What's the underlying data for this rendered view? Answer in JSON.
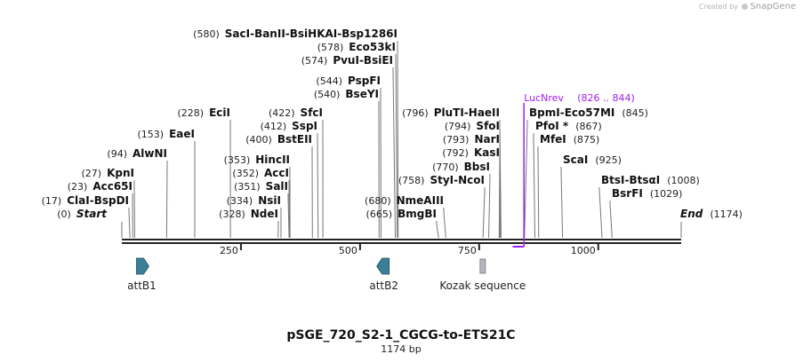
{
  "credit": {
    "prefix": "Created by",
    "brand": "SnapGene"
  },
  "map": {
    "title": "pSGE_720_S2-1_CGCG-to-ETS21C",
    "length_label": "1174 bp",
    "length": 1174,
    "ticks": [
      {
        "pos": 250,
        "label": "250"
      },
      {
        "pos": 500,
        "label": "500"
      },
      {
        "pos": 750,
        "label": "750"
      },
      {
        "pos": 1000,
        "label": "1000"
      }
    ]
  },
  "sites": [
    {
      "num": "(0)",
      "parts": [
        "Start"
      ],
      "italic": true,
      "pos": 0
    },
    {
      "num": "(17)",
      "parts": [
        "ClaI",
        "BspDI"
      ],
      "pos": 17
    },
    {
      "num": "(23)",
      "parts": [
        "Acc65I"
      ],
      "pos": 23
    },
    {
      "num": "(27)",
      "parts": [
        "KpnI"
      ],
      "pos": 27
    },
    {
      "num": "(94)",
      "parts": [
        "AlwNI"
      ],
      "pos": 94
    },
    {
      "num": "(153)",
      "parts": [
        "EaeI"
      ],
      "pos": 153
    },
    {
      "num": "(228)",
      "parts": [
        "EciI"
      ],
      "pos": 228
    },
    {
      "num": "(328)",
      "parts": [
        "NdeI"
      ],
      "pos": 328
    },
    {
      "num": "(334)",
      "parts": [
        "NsiI"
      ],
      "pos": 334
    },
    {
      "num": "(351)",
      "parts": [
        "SalI"
      ],
      "pos": 351
    },
    {
      "num": "(352)",
      "parts": [
        "AccI"
      ],
      "pos": 352
    },
    {
      "num": "(353)",
      "parts": [
        "HincII"
      ],
      "pos": 353
    },
    {
      "num": "(400)",
      "parts": [
        "BstEII"
      ],
      "pos": 400
    },
    {
      "num": "(412)",
      "parts": [
        "SspI"
      ],
      "pos": 412
    },
    {
      "num": "(422)",
      "parts": [
        "SfcI"
      ],
      "pos": 422
    },
    {
      "num": "(540)",
      "parts": [
        "BseYI"
      ],
      "pos": 540
    },
    {
      "num": "(544)",
      "parts": [
        "PspFI"
      ],
      "pos": 544
    },
    {
      "num": "(574)",
      "parts": [
        "PvuI",
        "BsiEI"
      ],
      "pos": 574
    },
    {
      "num": "(578)",
      "parts": [
        "Eco53kI"
      ],
      "pos": 578
    },
    {
      "num": "(580)",
      "parts": [
        "SacI",
        "BanII",
        "BsiHKAI",
        "Bsp1286I"
      ],
      "pos": 580
    },
    {
      "num": "(665)",
      "parts": [
        "BmgBI"
      ],
      "pos": 665
    },
    {
      "num": "(680)",
      "parts": [
        "NmeAIII"
      ],
      "pos": 680
    },
    {
      "num": "(758)",
      "parts": [
        "StyI",
        "NcoI"
      ],
      "pos": 758
    },
    {
      "num": "(770)",
      "parts": [
        "BbsI"
      ],
      "pos": 770
    },
    {
      "num": "(792)",
      "parts": [
        "KasI"
      ],
      "pos": 792
    },
    {
      "num": "(793)",
      "parts": [
        "NarI"
      ],
      "pos": 793
    },
    {
      "num": "(794)",
      "parts": [
        "SfoI"
      ],
      "pos": 794
    },
    {
      "num": "(796)",
      "parts": [
        "PluTI",
        "HaeII"
      ],
      "pos": 796
    },
    {
      "num": "(845)",
      "parts": [
        "BpmI",
        "Eco57MI"
      ],
      "pos": 845
    },
    {
      "num": "(867)",
      "parts": [
        "PfoI *"
      ],
      "pos": 867
    },
    {
      "num": "(875)",
      "parts": [
        "MfeI"
      ],
      "pos": 875
    },
    {
      "num": "(925)",
      "parts": [
        "ScaI"
      ],
      "pos": 925
    },
    {
      "num": "(1008)",
      "parts": [
        "BtsI",
        "BtsαI"
      ],
      "pos": 1008
    },
    {
      "num": "(1029)",
      "parts": [
        "BsrFI"
      ],
      "pos": 1029
    },
    {
      "num": "(1174)",
      "parts": [
        "End"
      ],
      "italic": true,
      "pos": 1174
    }
  ],
  "primer": {
    "name": "LucNrev",
    "range": "(826 .. 844)",
    "start": 826,
    "end": 844,
    "color": "#a020f0"
  },
  "features": [
    {
      "name": "attB1",
      "start": 30,
      "end": 54,
      "shape": "arrow-right",
      "color": "#3a7f95"
    },
    {
      "name": "attB2",
      "start": 538,
      "end": 562,
      "shape": "arrow-left",
      "color": "#3a7f95"
    },
    {
      "name": "Kozak sequence",
      "start": 753,
      "end": 762,
      "shape": "box",
      "color": "#b5b5c0"
    }
  ]
}
